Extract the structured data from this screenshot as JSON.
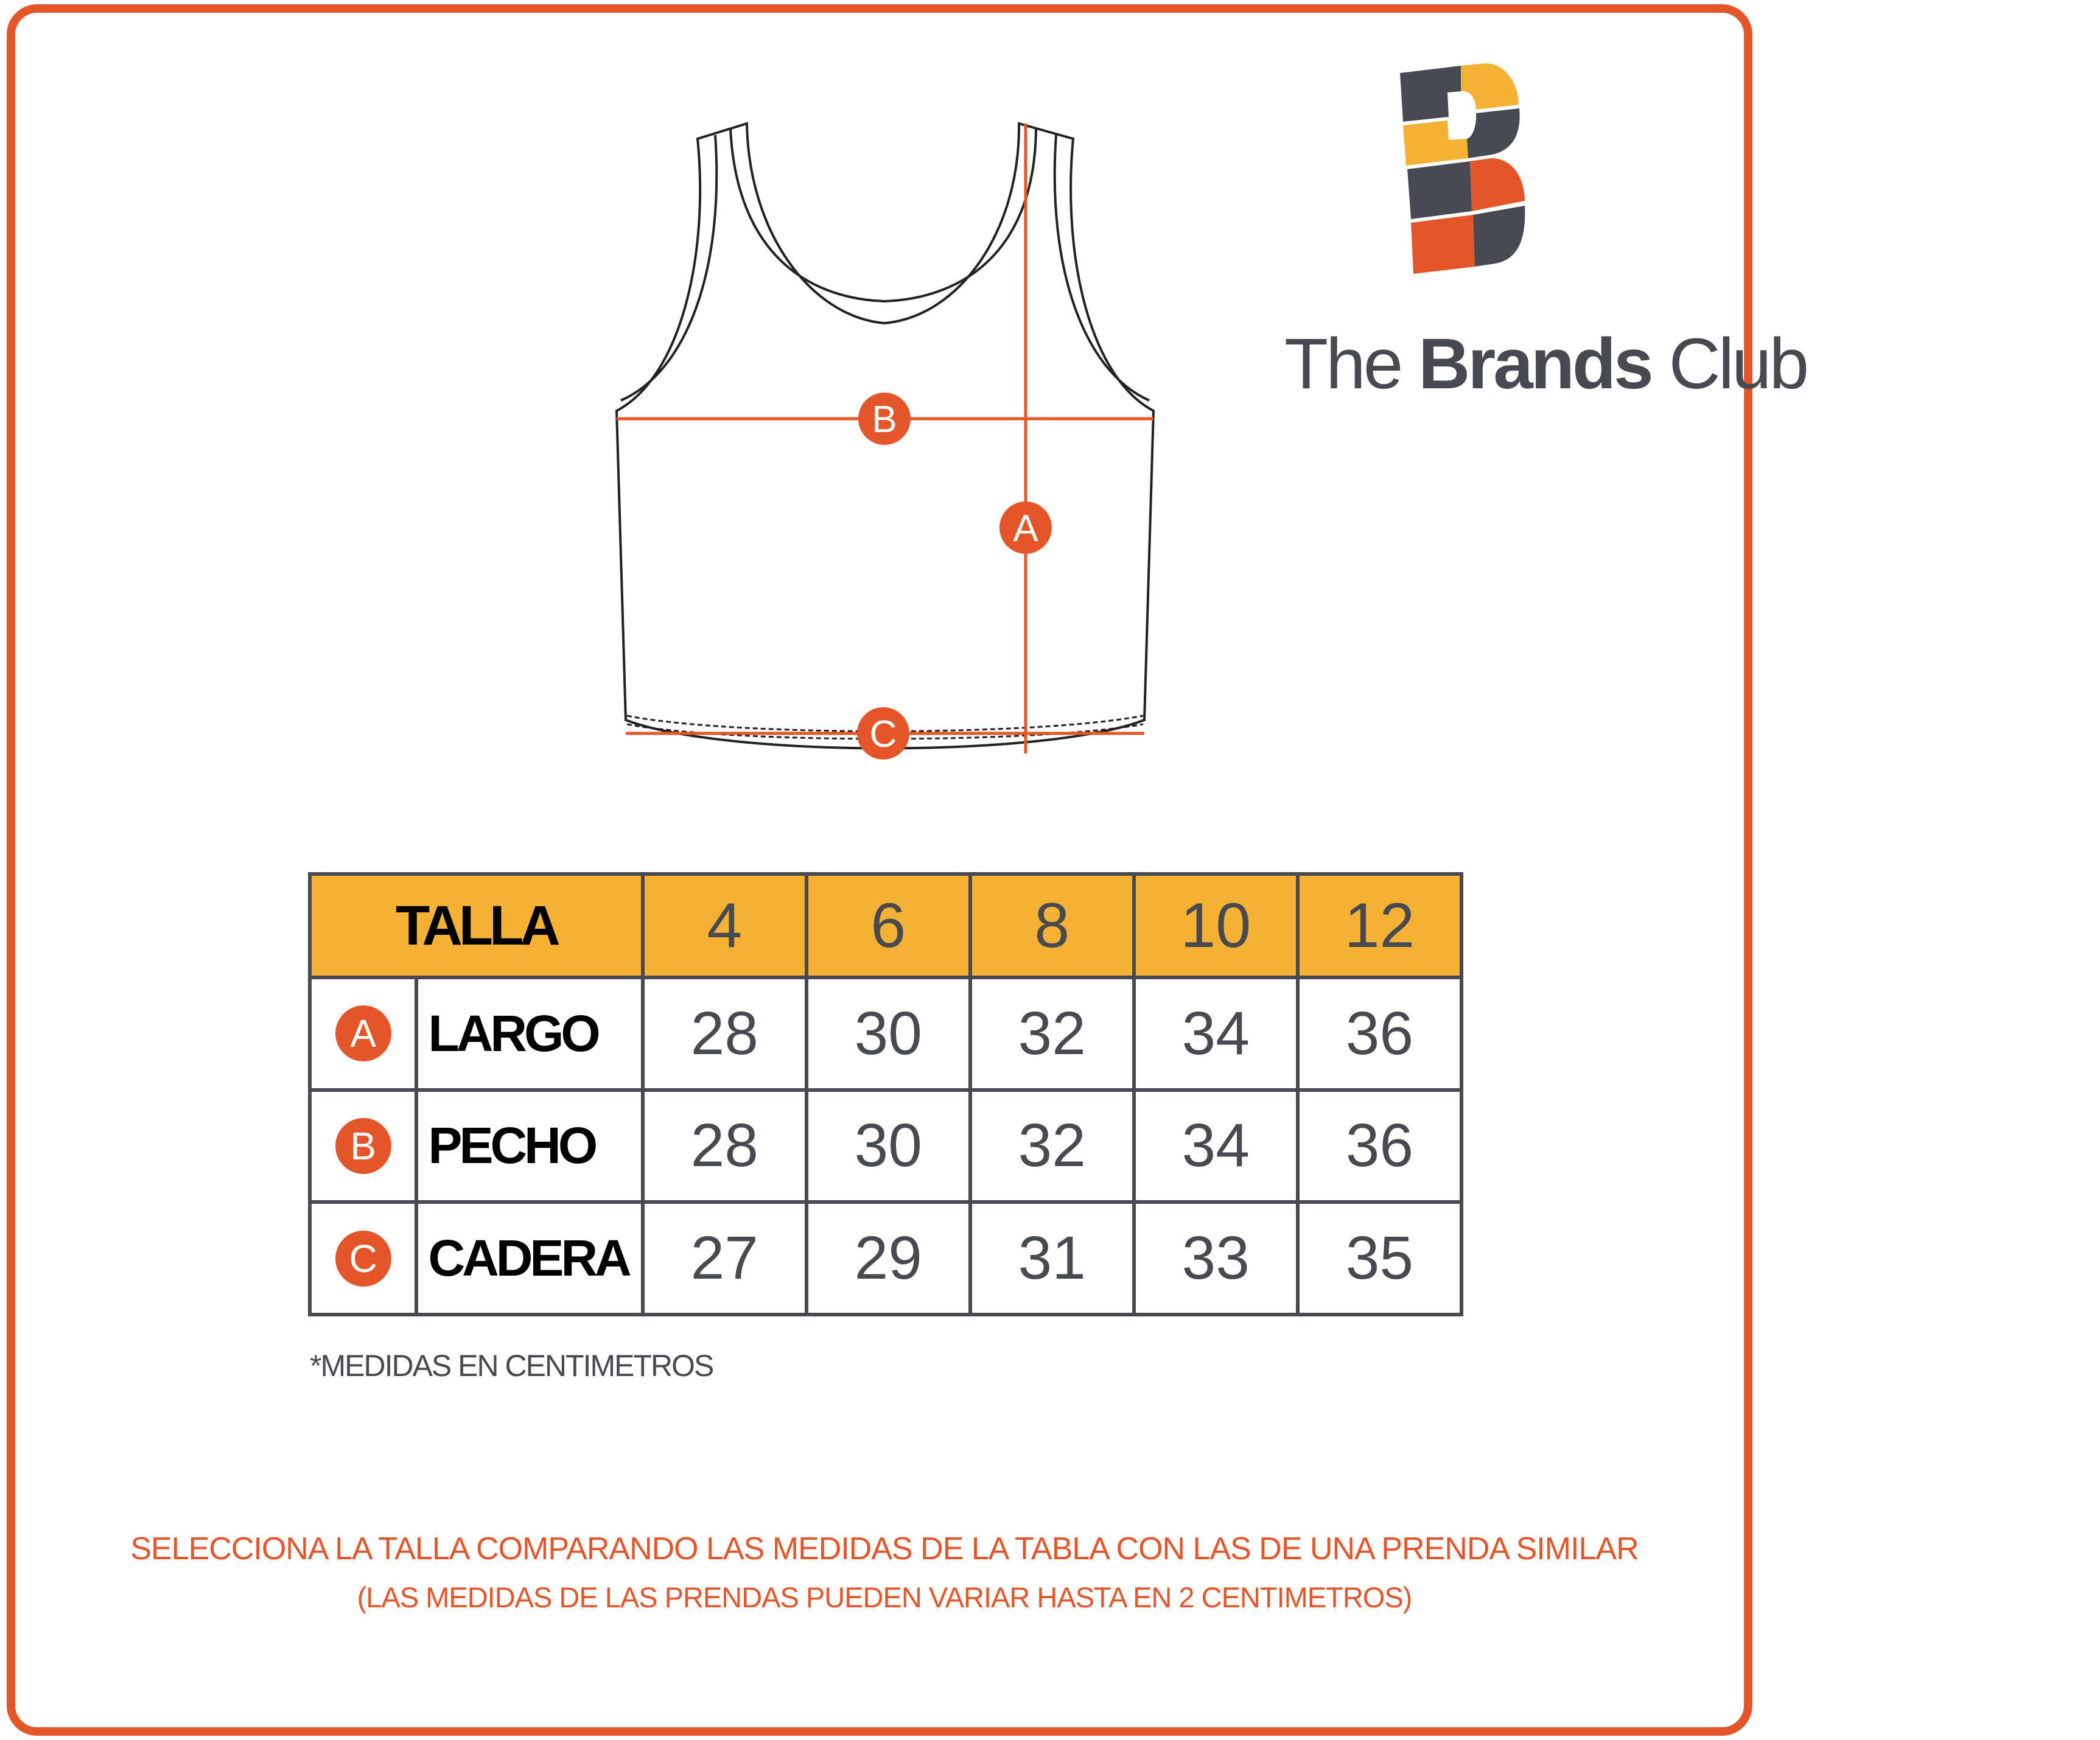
{
  "brand": {
    "logo_letter": "B",
    "name_prefix": "The",
    "name_bold": "Brands",
    "name_suffix": "Club"
  },
  "colors": {
    "accent": "#e5552a",
    "header_fill": "#f4b134",
    "dark_gray": "#474b51"
  },
  "diagram": {
    "markers": [
      "A",
      "B",
      "C"
    ]
  },
  "table": {
    "header_label": "TALLA",
    "sizes": [
      "4",
      "6",
      "8",
      "10",
      "12"
    ],
    "rows": [
      {
        "marker": "A",
        "label": "LARGO",
        "values": [
          "28",
          "30",
          "32",
          "34",
          "36"
        ]
      },
      {
        "marker": "B",
        "label": "PECHO",
        "values": [
          "28",
          "30",
          "32",
          "34",
          "36"
        ]
      },
      {
        "marker": "C",
        "label": "CADERA",
        "values": [
          "27",
          "29",
          "31",
          "33",
          "35"
        ]
      }
    ]
  },
  "note": "*MEDIDAS EN CENTIMETROS",
  "footer": {
    "line1": "SELECCIONA LA TALLA COMPARANDO LAS MEDIDAS DE LA TABLA CON LAS DE UNA PRENDA SIMILAR",
    "line2": "(LAS MEDIDAS DE LAS PRENDAS PUEDEN VARIAR HASTA EN 2 CENTIMETROS)"
  }
}
